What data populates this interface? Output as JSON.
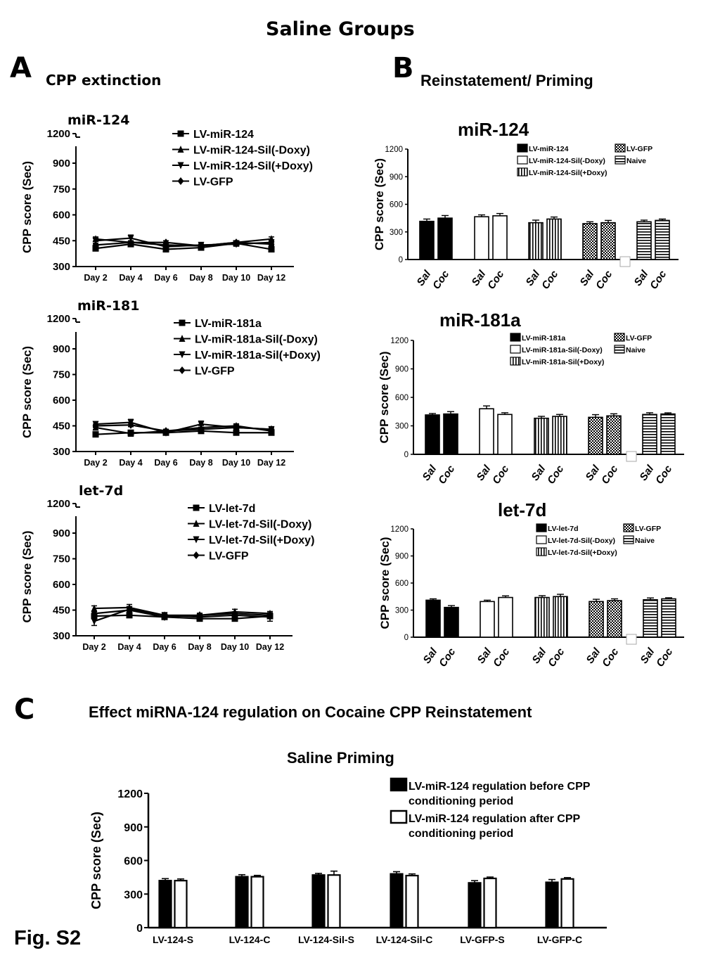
{
  "figure": {
    "title": "Saline Groups",
    "fig_label": "Fig. S2",
    "panel_a": {
      "letter": "A",
      "subtitle": "CPP extinction"
    },
    "panel_b": {
      "letter": "B",
      "subtitle": "Reinstatement/ Priming"
    },
    "panel_c": {
      "letter": "C",
      "subtitle": "Effect miRNA-124 regulation on Cocaine CPP Reinstatement",
      "subtitle2": "Saline Priming"
    }
  },
  "chart_data": [
    {
      "id": "a1",
      "type": "line",
      "panel": "A",
      "title": "miR-124",
      "ylabel": "CPP score (Sec)",
      "ylim": [
        300,
        1200
      ],
      "yticks": [
        300,
        450,
        600,
        750,
        900,
        1200
      ],
      "axis_break": true,
      "x": [
        "Day 2",
        "Day 4",
        "Day 6",
        "Day 8",
        "Day 10",
        "Day 12"
      ],
      "series": [
        {
          "name": "LV-miR-124",
          "marker": "square",
          "values": [
            405,
            430,
            400,
            410,
            435,
            400
          ],
          "err": [
            10,
            10,
            10,
            10,
            10,
            10
          ]
        },
        {
          "name": "LV-miR-124-Sil(-Doxy)",
          "marker": "triangle-up",
          "values": [
            460,
            440,
            425,
            420,
            440,
            460
          ],
          "err": [
            12,
            10,
            10,
            10,
            10,
            12
          ]
        },
        {
          "name": "LV-miR-124-Sil(+Doxy)",
          "marker": "triangle-down",
          "values": [
            450,
            465,
            415,
            425,
            430,
            440
          ],
          "err": [
            15,
            18,
            12,
            15,
            12,
            15
          ]
        },
        {
          "name": "LV-GFP",
          "marker": "diamond",
          "values": [
            425,
            440,
            440,
            420,
            440,
            430
          ],
          "err": [
            10,
            10,
            10,
            10,
            10,
            10
          ]
        }
      ],
      "legend": "top-right"
    },
    {
      "id": "a2",
      "type": "line",
      "panel": "A",
      "title": "miR-181",
      "ylabel": "CPP score (Sec)",
      "ylim": [
        300,
        1200
      ],
      "yticks": [
        300,
        450,
        600,
        750,
        900,
        1200
      ],
      "axis_break": true,
      "x": [
        "Day 2",
        "Day 4",
        "Day 6",
        "Day 8",
        "Day 10",
        "Day 12"
      ],
      "series": [
        {
          "name": "LV-miR-181a",
          "marker": "square",
          "values": [
            400,
            410,
            410,
            420,
            410,
            410
          ],
          "err": [
            10,
            10,
            10,
            10,
            12,
            12
          ]
        },
        {
          "name": "LV-miR-181a-Sil(-Doxy)",
          "marker": "triangle-up",
          "values": [
            440,
            405,
            420,
            440,
            450,
            420
          ],
          "err": [
            12,
            10,
            10,
            12,
            12,
            10
          ]
        },
        {
          "name": "LV-miR-181a-Sil(+Doxy)",
          "marker": "triangle-down",
          "values": [
            460,
            470,
            410,
            460,
            440,
            430
          ],
          "err": [
            15,
            18,
            12,
            18,
            15,
            12
          ]
        },
        {
          "name": "LV-GFP",
          "marker": "diamond",
          "values": [
            450,
            455,
            420,
            430,
            440,
            430
          ],
          "err": [
            10,
            10,
            10,
            10,
            10,
            10
          ]
        }
      ],
      "legend": "top-right"
    },
    {
      "id": "a3",
      "type": "line",
      "panel": "A",
      "title": "let-7d",
      "ylabel": "CPP score (Sec)",
      "ylim": [
        300,
        1200
      ],
      "yticks": [
        300,
        450,
        600,
        750,
        900,
        1200
      ],
      "axis_break": true,
      "x": [
        "Day 2",
        "Day 4",
        "Day 6",
        "Day 8",
        "Day 10",
        "Day 12"
      ],
      "series": [
        {
          "name": "LV-let-7d",
          "marker": "square",
          "values": [
            415,
            420,
            410,
            400,
            400,
            415
          ],
          "err": [
            10,
            10,
            10,
            10,
            10,
            10
          ]
        },
        {
          "name": "LV-let-7d-Sil(-Doxy)",
          "marker": "triangle-up",
          "values": [
            460,
            465,
            420,
            420,
            440,
            430
          ],
          "err": [
            15,
            18,
            12,
            12,
            15,
            12
          ]
        },
        {
          "name": "LV-let-7d-Sil(+Doxy)",
          "marker": "triangle-down",
          "values": [
            385,
            455,
            420,
            410,
            420,
            410
          ],
          "err": [
            25,
            15,
            12,
            12,
            12,
            25
          ]
        },
        {
          "name": "LV-GFP",
          "marker": "diamond",
          "values": [
            430,
            450,
            410,
            420,
            430,
            420
          ],
          "err": [
            10,
            10,
            10,
            10,
            10,
            10
          ]
        }
      ],
      "legend": "top-right"
    },
    {
      "id": "b1",
      "type": "bar",
      "panel": "B",
      "title": "miR-124",
      "ylabel": "CPP score (Sec)",
      "ylim": [
        0,
        1200
      ],
      "yticks": [
        0,
        300,
        600,
        900,
        1200
      ],
      "categories": [
        "Sal",
        "Coc"
      ],
      "groups": [
        {
          "name": "LV-miR-124",
          "pattern": "solid",
          "values": [
            415,
            450
          ],
          "err": [
            25,
            28
          ]
        },
        {
          "name": "LV-miR-124-Sil(-Doxy)",
          "pattern": "open",
          "values": [
            465,
            475
          ],
          "err": [
            20,
            25
          ]
        },
        {
          "name": "LV-miR-124-Sil(+Doxy)",
          "pattern": "vstripe",
          "values": [
            400,
            440
          ],
          "err": [
            28,
            22
          ]
        },
        {
          "name": "LV-GFP",
          "pattern": "check",
          "values": [
            390,
            400
          ],
          "err": [
            20,
            25
          ]
        },
        {
          "name": "Naive",
          "pattern": "hstripe",
          "values": [
            410,
            425
          ],
          "err": [
            18,
            15
          ]
        }
      ],
      "legend": "top-right"
    },
    {
      "id": "b2",
      "type": "bar",
      "panel": "B",
      "title": "miR-181a",
      "ylabel": "CPP score (Sec)",
      "ylim": [
        0,
        1200
      ],
      "yticks": [
        0,
        300,
        600,
        900,
        1200
      ],
      "categories": [
        "Sal",
        "Coc"
      ],
      "groups": [
        {
          "name": "LV-miR-181a",
          "pattern": "solid",
          "values": [
            415,
            425
          ],
          "err": [
            15,
            25
          ]
        },
        {
          "name": "LV-miR-181a-Sil(-Doxy)",
          "pattern": "open",
          "values": [
            480,
            420
          ],
          "err": [
            30,
            18
          ]
        },
        {
          "name": "LV-miR-181a-Sil(+Doxy)",
          "pattern": "vstripe",
          "values": [
            380,
            400
          ],
          "err": [
            20,
            20
          ]
        },
        {
          "name": "LV-GFP",
          "pattern": "check",
          "values": [
            390,
            405
          ],
          "err": [
            28,
            22
          ]
        },
        {
          "name": "Naive",
          "pattern": "hstripe",
          "values": [
            420,
            425
          ],
          "err": [
            18,
            12
          ]
        }
      ],
      "legend": "top-right"
    },
    {
      "id": "b3",
      "type": "bar",
      "panel": "B",
      "title": "let-7d",
      "ylabel": "CPP score (Sec)",
      "ylim": [
        0,
        1200
      ],
      "yticks": [
        0,
        300,
        600,
        900,
        1200
      ],
      "categories": [
        "Sal",
        "Coc"
      ],
      "groups": [
        {
          "name": "LV-let-7d",
          "pattern": "solid",
          "values": [
            410,
            330
          ],
          "err": [
            15,
            20
          ]
        },
        {
          "name": "LV-let-7d-Sil(-Doxy)",
          "pattern": "open",
          "values": [
            395,
            440
          ],
          "err": [
            15,
            18
          ]
        },
        {
          "name": "LV-let-7d-Sil(+Doxy)",
          "pattern": "vstripe",
          "values": [
            440,
            450
          ],
          "err": [
            20,
            25
          ]
        },
        {
          "name": "LV-GFP",
          "pattern": "check",
          "values": [
            395,
            405
          ],
          "err": [
            25,
            20
          ]
        },
        {
          "name": "Naive",
          "pattern": "hstripe",
          "values": [
            415,
            425
          ],
          "err": [
            20,
            12
          ]
        }
      ],
      "legend": "top-right"
    },
    {
      "id": "c",
      "type": "bar",
      "panel": "C",
      "ylabel": "CPP score (Sec)",
      "ylim": [
        0,
        1200
      ],
      "yticks": [
        0,
        300,
        600,
        900,
        1200
      ],
      "categories": [
        "LV-124-S",
        "LV-124-C",
        "LV-124-Sil-S",
        "LV-124-Sil-C",
        "LV-GFP-S",
        "LV-GFP-C"
      ],
      "series": [
        {
          "name": "LV-miR-124 regulation before CPP conditioning period",
          "fill": "#000000",
          "values": [
            420,
            455,
            470,
            480,
            400,
            405
          ],
          "err": [
            18,
            18,
            15,
            20,
            20,
            25
          ]
        },
        {
          "name": "LV-miR-124 regulation after CPP conditioning period",
          "fill": "#ffffff",
          "values": [
            420,
            455,
            470,
            465,
            440,
            435
          ],
          "err": [
            15,
            12,
            35,
            15,
            12,
            12
          ]
        }
      ],
      "legend": "top-right"
    }
  ]
}
